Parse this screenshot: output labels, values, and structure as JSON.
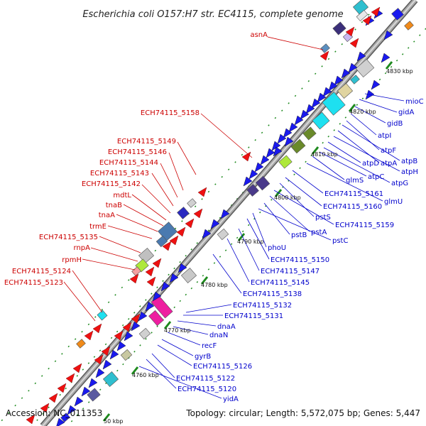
{
  "title": "Escherichia coli O157:H7 str. EC4115, complete genome",
  "footer": {
    "accession": "Accession: NC_011353",
    "topology": "Topology: circular; Length: 5,572,075 bp; Genes: 5,447"
  },
  "colors": {
    "reverse_label": "#cc0000",
    "forward_label": "#0000cc",
    "reverse_gene": "#ee1111",
    "forward_gene": "#1a1aee",
    "backbone": "#8a8a8a",
    "tick": "#1e8a1e"
  },
  "ticks": [
    "4830 kbp",
    "4820 kbp",
    "4810 kbp",
    "4800 kbp",
    "4790 kbp",
    "4780 kbp",
    "4770 kbp",
    "4760 kbp",
    "50 kbp"
  ],
  "labels_reverse": [
    "asnA",
    "ECH74115_5158",
    "ECH74115_5149",
    "ECH74115_5146",
    "ECH74115_5144",
    "ECH74115_5143",
    "ECH74115_5142",
    "mdtL",
    "tnaB",
    "tnaA",
    "trmE",
    "ECH74115_5135",
    "rnpA",
    "rpmH",
    "ECH74115_5124",
    "ECH74115_5123"
  ],
  "labels_forward": [
    "mioC",
    "gidA",
    "gidB",
    "atpI",
    "atpF",
    "atpB",
    "atpA",
    "atpH",
    "atpD",
    "atpG",
    "atpC",
    "glmS",
    "glmU",
    "ECH74115_5161",
    "ECH74115_5160",
    "pstS",
    "ECH74115_5159",
    "pstA",
    "pstB",
    "pstC",
    "phoU",
    "ECH74115_5150",
    "ECH74115_5147",
    "ECH74115_5145",
    "ECH74115_5138",
    "ECH74115_5132",
    "ECH74115_5131",
    "dnaA",
    "dnaN",
    "recF",
    "gyrB",
    "ECH74115_5126",
    "ECH74115_5122",
    "ECH74115_5120",
    "yidA"
  ]
}
